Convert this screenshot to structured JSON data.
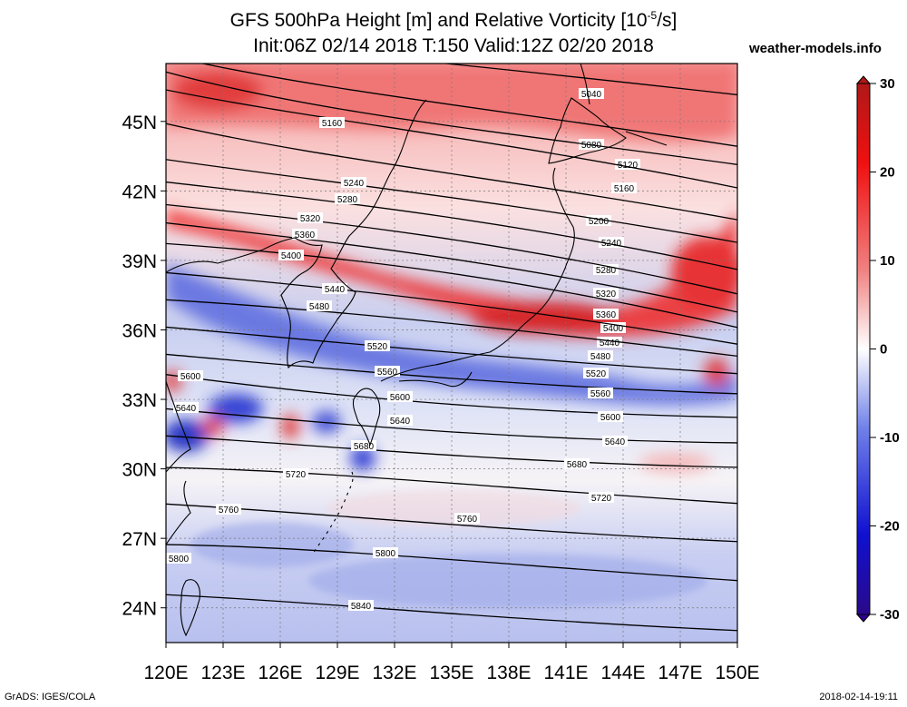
{
  "title_line1_html": "GFS 500hPa Height [m] and Relative Vorticity [10<tspan font-size=\"12\" dy=\"-8\">-5</tspan><tspan dy=\"8\">/s]</tspan>",
  "title": {
    "line1_pre": "GFS 500hPa Height [m] and Relative Vorticity [10",
    "line1_sup": "-5",
    "line1_post": "/s]",
    "line2": "Init:06Z 02/14 2018 T:150 Valid:12Z 02/20 2018"
  },
  "brand": "weather-models.info",
  "footer": {
    "left": "GrADS: IGES/COLA",
    "right": "2018-02-14-19:11"
  },
  "axes": {
    "lon_labels": [
      "120E",
      "123E",
      "126E",
      "129E",
      "132E",
      "135E",
      "138E",
      "141E",
      "144E",
      "147E",
      "150E"
    ],
    "lat_labels": [
      "45N",
      "42N",
      "39N",
      "36N",
      "33N",
      "30N",
      "27N",
      "24N"
    ],
    "lon_range": [
      120,
      150
    ],
    "lat_range": [
      22.5,
      47.5
    ]
  },
  "colorbar": {
    "labels": [
      "30",
      "20",
      "10",
      "0",
      "-10",
      "-20",
      "-30"
    ],
    "range": [
      -30,
      30
    ],
    "colors": {
      "max": "#b01818",
      "pos": "#f01010",
      "zero": "#ffffff",
      "neg": "#1020e0",
      "min": "#300090"
    }
  },
  "height_contours": {
    "labels": [
      "5040",
      "5080",
      "5120",
      "5160",
      "5200",
      "5240",
      "5280",
      "5320",
      "5360",
      "5400",
      "5440",
      "5480",
      "5520",
      "5560",
      "5600",
      "5640",
      "5680",
      "5720",
      "5760",
      "5800",
      "5840"
    ]
  },
  "colors": {
    "vort_pos": "#f03030",
    "vort_neg": "#3040d0",
    "contour": "#000000",
    "coast": "#000000"
  }
}
